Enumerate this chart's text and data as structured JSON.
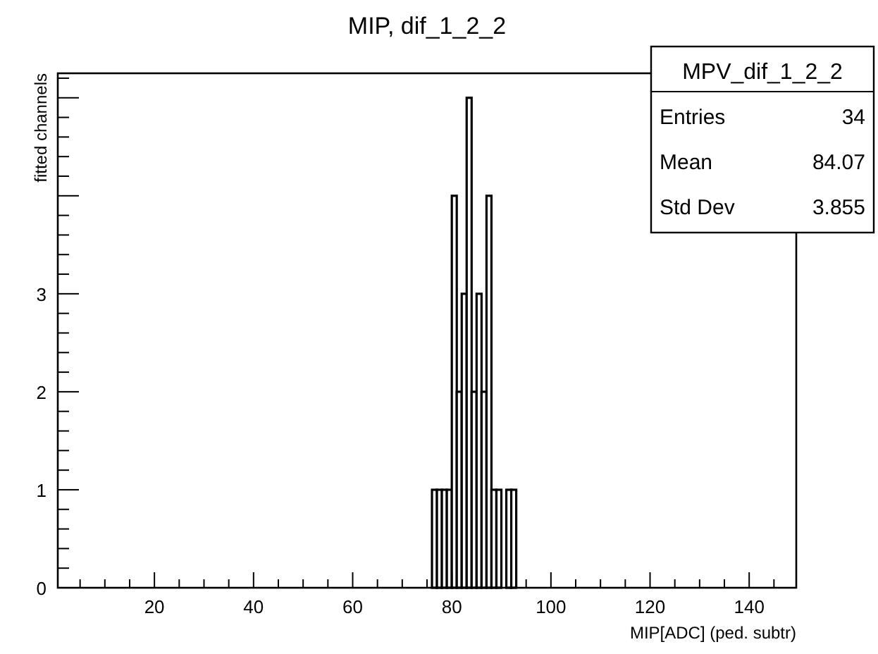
{
  "chart_data": {
    "type": "histogram",
    "title": "MIP, dif_1_2_2",
    "xlabel": "MIP[ADC] (ped. subtr)",
    "ylabel": "fitted channels",
    "bins": [
      76,
      77,
      78,
      79,
      80,
      81,
      82,
      83,
      84,
      85,
      86,
      87,
      88,
      89,
      90,
      91,
      92,
      93
    ],
    "values": [
      1,
      1,
      1,
      1,
      4,
      2,
      3,
      5,
      2,
      3,
      2,
      4,
      1,
      1,
      0,
      1,
      1
    ],
    "color": "#ffffff",
    "xlim": [
      0.5,
      149.5
    ],
    "ylim": [
      0,
      5.25
    ],
    "xticks": [
      {
        "value": 5,
        "label": null
      },
      {
        "value": 10,
        "label": null
      },
      {
        "value": 15,
        "label": null
      },
      20,
      {
        "value": 25,
        "label": null
      },
      {
        "value": 30,
        "label": null
      },
      {
        "value": 35,
        "label": null
      },
      40,
      {
        "value": 45,
        "label": null
      },
      {
        "value": 50,
        "label": null
      },
      {
        "value": 55,
        "label": null
      },
      60,
      {
        "value": 65,
        "label": null
      },
      {
        "value": 70,
        "label": null
      },
      {
        "value": 75,
        "label": null
      },
      80,
      {
        "value": 85,
        "label": null
      },
      {
        "value": 90,
        "label": null
      },
      {
        "value": 95,
        "label": null
      },
      100,
      {
        "value": 105,
        "label": null
      },
      {
        "value": 110,
        "label": null
      },
      {
        "value": 115,
        "label": null
      },
      120,
      {
        "value": 125,
        "label": null
      },
      {
        "value": 130,
        "label": null
      },
      {
        "value": 135,
        "label": null
      },
      140,
      {
        "value": 145,
        "label": null
      }
    ],
    "yticks": [
      0,
      {
        "value": 0.2,
        "label": null
      },
      {
        "value": 0.4,
        "label": null
      },
      {
        "value": 0.6,
        "label": null
      },
      {
        "value": 0.8,
        "label": null
      },
      1,
      {
        "value": 1.2,
        "label": null
      },
      {
        "value": 1.4,
        "label": null
      },
      {
        "value": 1.6,
        "label": null
      },
      {
        "value": 1.8,
        "label": null
      },
      2,
      {
        "value": 2.2,
        "label": null
      },
      {
        "value": 2.4,
        "label": null
      },
      {
        "value": 2.6,
        "label": null
      },
      {
        "value": 2.8,
        "label": null
      },
      3,
      {
        "value": 3.2,
        "label": null
      },
      {
        "value": 3.4,
        "label": null
      },
      {
        "value": 3.6,
        "label": null
      },
      {
        "value": 3.8,
        "label": null
      },
      {
        "value": 4,
        "label": null
      },
      {
        "value": 4.2,
        "label": null
      },
      {
        "value": 4.4,
        "label": null
      },
      {
        "value": 4.6,
        "label": null
      },
      {
        "value": 4.8,
        "label": null
      },
      {
        "value": 5,
        "label": null
      },
      {
        "value": 5.2,
        "label": null
      }
    ],
    "annotations": [
      "MPV_dif_1_2_2",
      "Entries",
      "34",
      "Mean",
      "84.07",
      "Std Dev",
      "3.855"
    ]
  }
}
